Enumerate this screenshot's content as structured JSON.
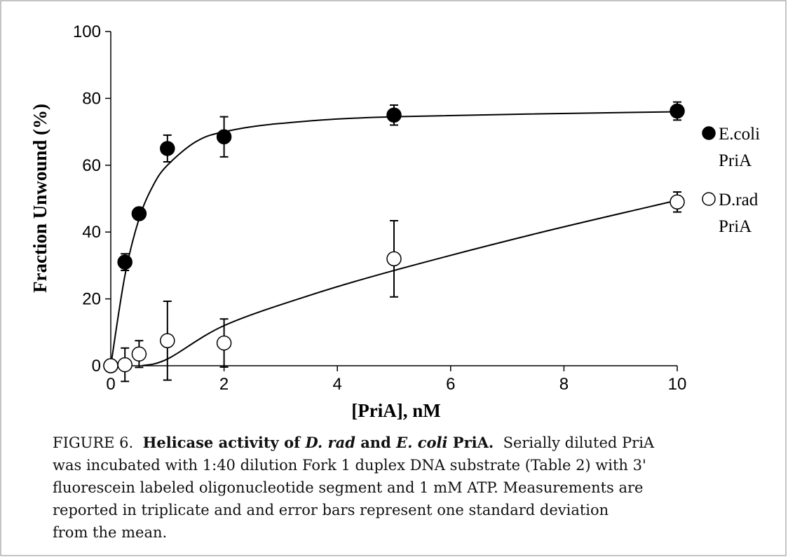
{
  "chart_data": {
    "type": "scatter",
    "xlabel": "[PriA], nM",
    "ylabel": "Fraction Unwound (%)",
    "xlim": [
      0,
      10
    ],
    "ylim": [
      0,
      100
    ],
    "xticks": [
      0,
      2,
      4,
      6,
      8,
      10
    ],
    "yticks": [
      0,
      20,
      40,
      60,
      80,
      100
    ],
    "series": [
      {
        "name": "E.coli PriA",
        "color": "#000000",
        "marker": "filled",
        "x": [
          0,
          0.25,
          0.5,
          1,
          2,
          5,
          10
        ],
        "values": [
          0,
          31,
          45.5,
          65,
          68.5,
          75,
          76.2
        ],
        "errors": [
          0,
          2.5,
          1,
          4,
          6,
          3,
          2.7
        ],
        "fit_x": [
          0,
          0.25,
          0.5,
          0.75,
          1,
          1.5,
          2,
          3,
          5,
          10
        ],
        "fit_values": [
          0,
          27,
          44,
          54,
          60,
          67,
          70,
          72.5,
          74.5,
          76
        ]
      },
      {
        "name": "D.rad PriA",
        "color": "#000000",
        "marker": "open",
        "x": [
          0,
          0.25,
          0.5,
          1,
          2,
          5,
          10
        ],
        "values": [
          0,
          0.3,
          3.5,
          7.5,
          6.8,
          32,
          49
        ],
        "errors": [
          0,
          5,
          4,
          11.8,
          7.2,
          11.4,
          3
        ],
        "fit_x": [
          0.55,
          1,
          2,
          3.5,
          5,
          7.5,
          10
        ],
        "fit_values": [
          0,
          2,
          12,
          21,
          28.5,
          39.5,
          49.5
        ]
      }
    ]
  },
  "caption": {
    "label": "FIGURE 6.",
    "title_parts": [
      "Helicase activity of ",
      "D. rad",
      " and ",
      "E. coli",
      " PriA."
    ],
    "lines": [
      "Serially diluted PriA",
      "was incubated with 1:40 dilution Fork 1 duplex DNA substrate (Table 2) with 3'",
      "fluorescein labeled oligonucleotide segment and 1 mM ATP.  Measurements are",
      "reported in triplicate and  and error bars represent one standard deviation",
      "from the mean."
    ]
  }
}
